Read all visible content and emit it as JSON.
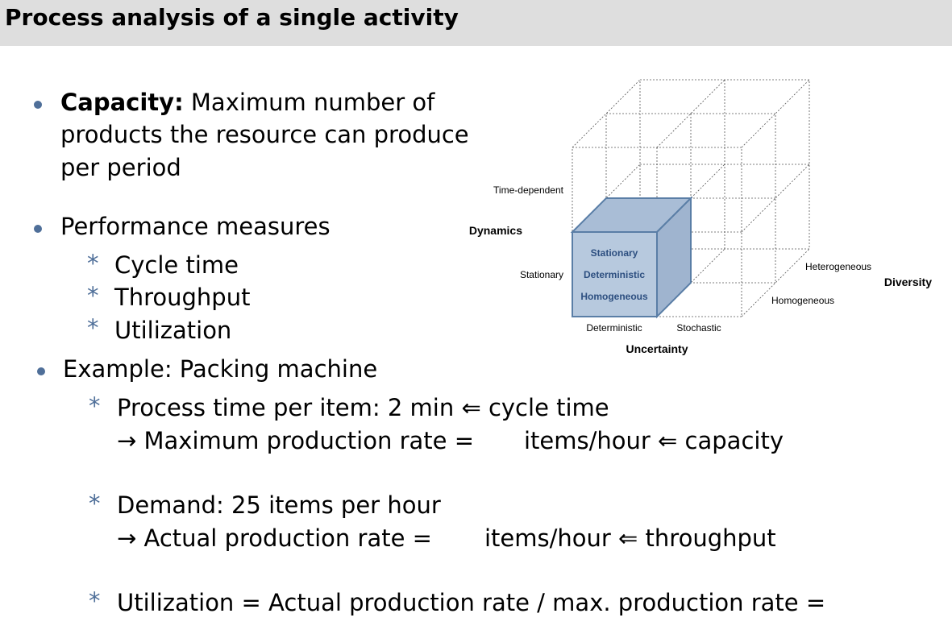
{
  "slide": {
    "title": "Process analysis of a single activity"
  },
  "capacity": {
    "term": "Capacity:",
    "line1_rest": "Maximum number of",
    "line2": "products the resource can produce",
    "line3": "per period"
  },
  "performance": {
    "heading": "Performance measures",
    "items": [
      "Cycle time",
      "Throughput",
      "Utilization"
    ]
  },
  "example": {
    "heading": "Example: Packing machine",
    "process_time": "Process time per item: 2 min ⇐ cycle time",
    "max_rate_left": "→ Maximum production rate =",
    "max_rate_right": "items/hour ⇐ capacity",
    "demand": "Demand: 25 items per hour",
    "actual_rate_left": "→ Actual production rate =",
    "actual_rate_right": "items/hour ⇐ throughput",
    "utilization": "Utilization = Actual production rate / max. production rate ="
  },
  "diagram": {
    "dynamics_label": "Dynamics",
    "time_dependent": "Time-dependent",
    "stationary": "Stationary",
    "uncertainty_label": "Uncertainty",
    "deterministic": "Deterministic",
    "stochastic": "Stochastic",
    "diversity_label": "Diversity",
    "heterogeneous": "Heterogeneous",
    "homogeneous": "Homogeneous",
    "inner_stationary": "Stationary",
    "inner_deterministic": "Deterministic",
    "inner_homogeneous": "Homogeneous",
    "highlight_fill": "#b7c9de",
    "highlight_stroke": "#5a7ea6"
  }
}
